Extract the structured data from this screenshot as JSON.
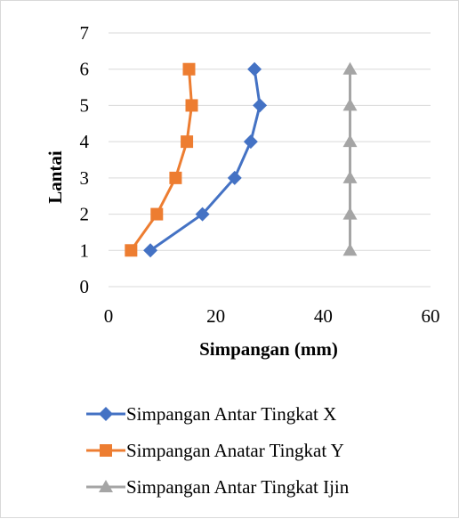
{
  "chart_data": {
    "type": "line",
    "xlabel": "Simpangan (mm)",
    "ylabel": "Lantai",
    "xlim": [
      0,
      60
    ],
    "ylim": [
      0,
      7
    ],
    "x_ticks": [
      0,
      20,
      40,
      60
    ],
    "y_ticks": [
      0,
      1,
      2,
      3,
      4,
      5,
      6,
      7
    ],
    "grid": "horizontal",
    "legend_position": "bottom",
    "series": [
      {
        "name": "Simpangan Antar Tingkat X",
        "color": "#4472c4",
        "marker": "diamond",
        "points": [
          [
            7.8,
            1
          ],
          [
            17.5,
            2
          ],
          [
            23.5,
            3
          ],
          [
            26.5,
            4
          ],
          [
            28.2,
            5
          ],
          [
            27.2,
            6
          ]
        ]
      },
      {
        "name": "Simpangan Anatar Tingkat Y",
        "color": "#ed7d31",
        "marker": "square",
        "points": [
          [
            4.2,
            1
          ],
          [
            9.0,
            2
          ],
          [
            12.5,
            3
          ],
          [
            14.6,
            4
          ],
          [
            15.5,
            5
          ],
          [
            15.0,
            6
          ]
        ]
      },
      {
        "name": "Simpangan Antar Tingkat Ijin",
        "color": "#a5a5a5",
        "marker": "triangle",
        "points": [
          [
            45,
            1
          ],
          [
            45,
            2
          ],
          [
            45,
            3
          ],
          [
            45,
            4
          ],
          [
            45,
            5
          ],
          [
            45,
            6
          ]
        ]
      }
    ]
  }
}
